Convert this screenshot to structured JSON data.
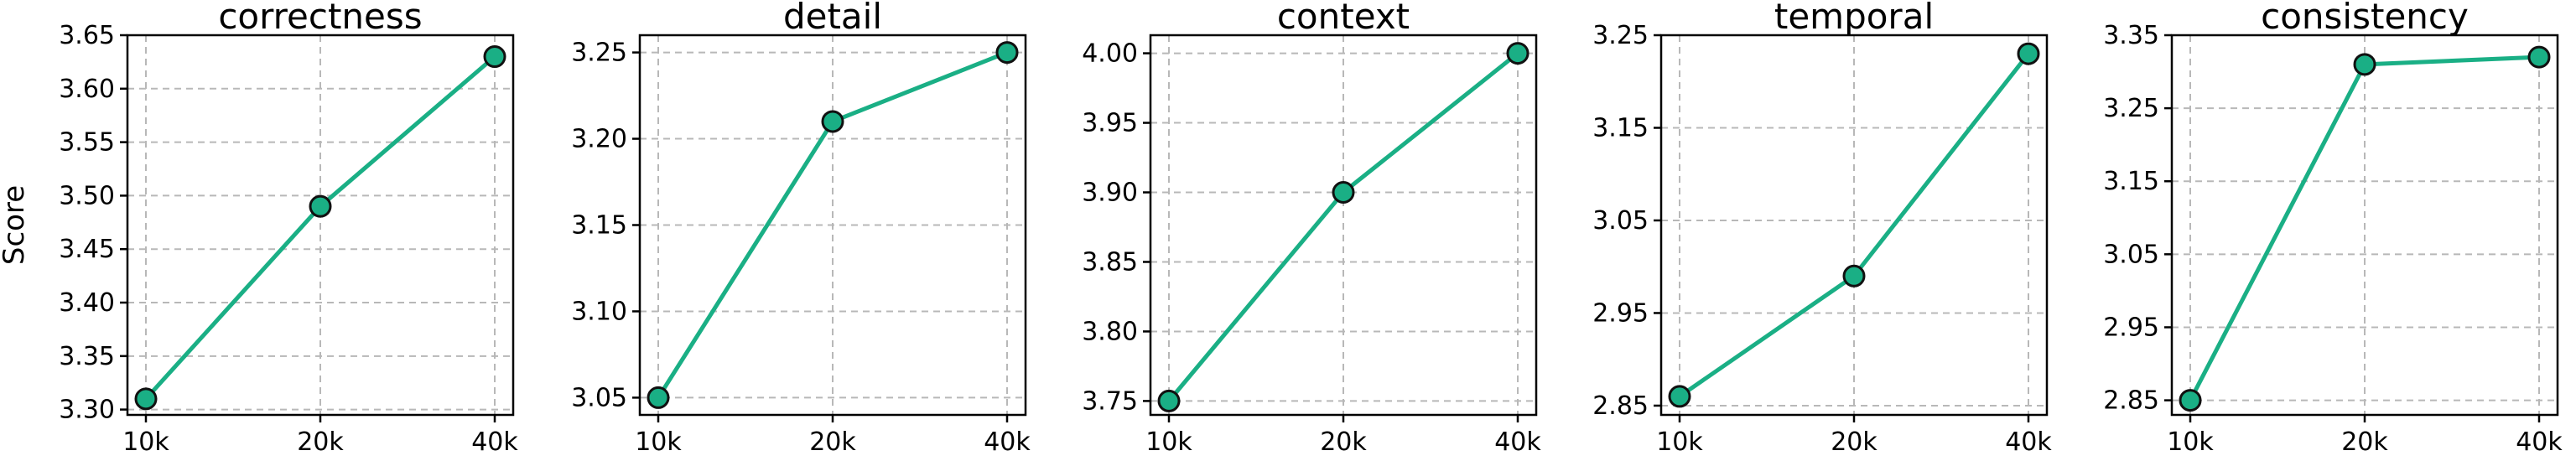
{
  "colors": {
    "series": "#1aaf85"
  },
  "chart_data": [
    {
      "type": "line",
      "title": "correctness",
      "ylabel": "Score",
      "categories": [
        "10k",
        "20k",
        "40k"
      ],
      "values": [
        3.31,
        3.49,
        3.63
      ],
      "yticks": [
        "3.30",
        "3.35",
        "3.40",
        "3.45",
        "3.50",
        "3.55",
        "3.60",
        "3.65"
      ],
      "ylim": [
        3.295,
        3.65
      ],
      "grid": true
    },
    {
      "type": "line",
      "title": "detail",
      "categories": [
        "10k",
        "20k",
        "40k"
      ],
      "values": [
        3.05,
        3.21,
        3.25
      ],
      "yticks": [
        "3.05",
        "3.10",
        "3.15",
        "3.20",
        "3.25"
      ],
      "ylim": [
        3.04,
        3.26
      ],
      "grid": true
    },
    {
      "type": "line",
      "title": "context",
      "categories": [
        "10k",
        "20k",
        "40k"
      ],
      "values": [
        3.75,
        3.9,
        4.0
      ],
      "yticks": [
        "3.75",
        "3.80",
        "3.85",
        "3.90",
        "3.95",
        "4.00"
      ],
      "ylim": [
        3.74,
        4.013
      ],
      "grid": true
    },
    {
      "type": "line",
      "title": "temporal",
      "categories": [
        "10k",
        "20k",
        "40k"
      ],
      "values": [
        2.86,
        2.99,
        3.23
      ],
      "yticks": [
        "2.85",
        "2.95",
        "3.05",
        "3.15",
        "3.25"
      ],
      "ylim": [
        2.84,
        3.25
      ],
      "grid": true
    },
    {
      "type": "line",
      "title": "consistency",
      "categories": [
        "10k",
        "20k",
        "40k"
      ],
      "values": [
        2.85,
        3.31,
        3.32
      ],
      "yticks": [
        "2.85",
        "2.95",
        "3.05",
        "3.15",
        "3.25",
        "3.35"
      ],
      "ylim": [
        2.83,
        3.35
      ],
      "grid": true
    }
  ]
}
